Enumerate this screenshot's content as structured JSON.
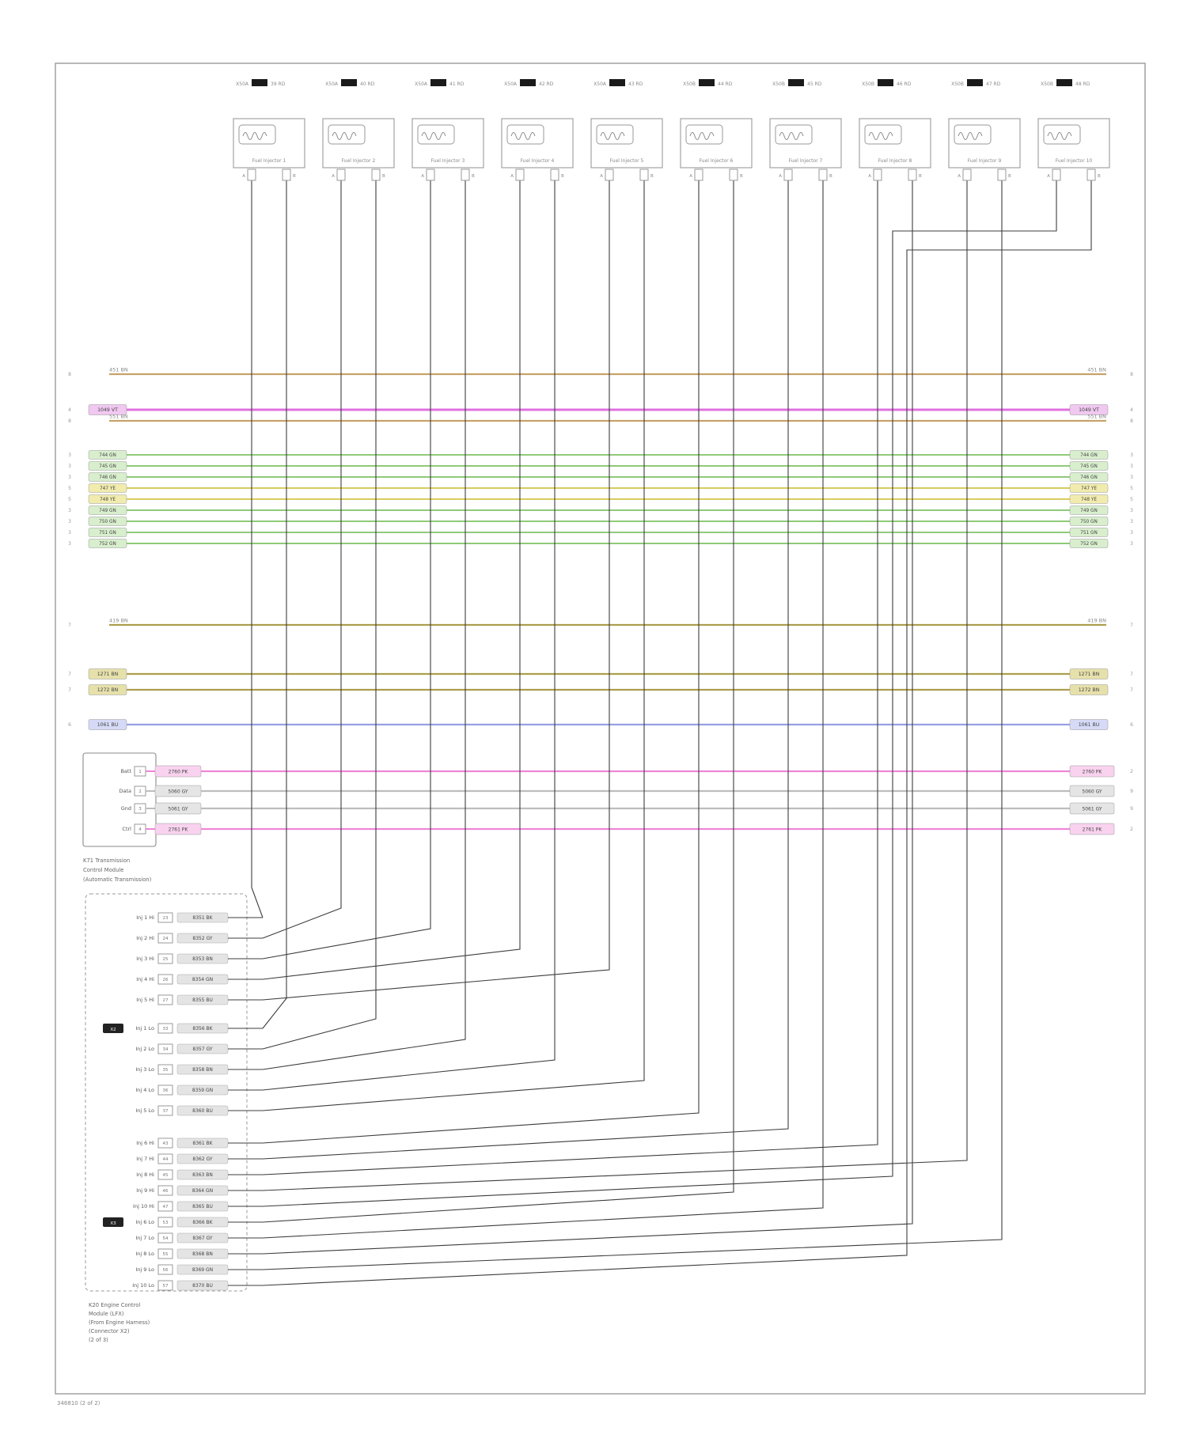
{
  "page": {
    "bg": "#ffffff",
    "frame_color": "#9a9a9a",
    "wire_color": "#3c3c3c"
  },
  "footer": {
    "doc_id": "346810 (2 of 2)"
  },
  "connectors": [
    {
      "name": "Fuel Injector 1",
      "hl": "X50A",
      "hr": "39 RD",
      "pl": "A",
      "pr": "B"
    },
    {
      "name": "Fuel Injector 2",
      "hl": "X50A",
      "hr": "40 RD",
      "pl": "A",
      "pr": "B"
    },
    {
      "name": "Fuel Injector 3",
      "hl": "X50A",
      "hr": "41 RD",
      "pl": "A",
      "pr": "B"
    },
    {
      "name": "Fuel Injector 4",
      "hl": "X50A",
      "hr": "42 RD",
      "pl": "A",
      "pr": "B"
    },
    {
      "name": "Fuel Injector 5",
      "hl": "X50A",
      "hr": "43 RD",
      "pl": "A",
      "pr": "B"
    },
    {
      "name": "Fuel Injector 6",
      "hl": "X50B",
      "hr": "44 RD",
      "pl": "A",
      "pr": "B"
    },
    {
      "name": "Fuel Injector 7",
      "hl": "X50B",
      "hr": "45 RD",
      "pl": "A",
      "pr": "B"
    },
    {
      "name": "Fuel Injector 8",
      "hl": "X50B",
      "hr": "46 RD",
      "pl": "A",
      "pr": "B"
    },
    {
      "name": "Fuel Injector 9",
      "hl": "X50B",
      "hr": "47 RD",
      "pl": "A",
      "pr": "B"
    },
    {
      "name": "Fuel Injector 10",
      "hl": "X50B",
      "hr": "48 RD",
      "pl": "A",
      "pr": "B"
    }
  ],
  "buses": [
    {
      "label": "451 BN",
      "num": "8",
      "color": "#c8a26a",
      "chip": "#e8d6b6"
    },
    {
      "label": "1049 VT",
      "num": "4",
      "color": "#e070e0",
      "chip": "#f0c8f0"
    },
    {
      "label": "551 BN",
      "num": "8",
      "color": "#c8a26a",
      "chip": "#e8d6b6"
    },
    {
      "label": "744 GN",
      "num": "3",
      "color": "#8fca79",
      "chip": "#d8eecd"
    },
    {
      "label": "745 GN",
      "num": "3",
      "color": "#8fca79",
      "chip": "#d8eecd"
    },
    {
      "label": "746 GN",
      "num": "3",
      "color": "#8fca79",
      "chip": "#d8eecd"
    },
    {
      "label": "747 YE",
      "num": "5",
      "color": "#d8cc5e",
      "chip": "#f1ecae"
    },
    {
      "label": "748 YE",
      "num": "5",
      "color": "#d8cc5e",
      "chip": "#f1ecae"
    },
    {
      "label": "749 GN",
      "num": "3",
      "color": "#8fca79",
      "chip": "#d8eecd"
    },
    {
      "label": "750 GN",
      "num": "3",
      "color": "#8fca79",
      "chip": "#d8eecd"
    },
    {
      "label": "751 GN",
      "num": "3",
      "color": "#8fca79",
      "chip": "#d8eecd"
    },
    {
      "label": "752 GN",
      "num": "3",
      "color": "#8fca79",
      "chip": "#d8eecd"
    },
    {
      "label": "419 BN",
      "num": "7",
      "color": "#ac9e4e",
      "chip": "#e6e0ab"
    },
    {
      "label": "1271 BN",
      "num": "7",
      "color": "#ac9e4e",
      "chip": "#e6e0ab"
    },
    {
      "label": "1272 BN",
      "num": "7",
      "color": "#ac9e4e",
      "chip": "#e6e0ab"
    },
    {
      "label": "1061 BU",
      "num": "6",
      "color": "#98a0e6",
      "chip": "#d6daf6"
    }
  ],
  "module": {
    "rows": [
      {
        "pin": "1",
        "label": "Batt",
        "chip": "2760 PK",
        "color": "#ee86d8",
        "chip_fill": "#f8d2ee",
        "num": "2"
      },
      {
        "pin": "2",
        "label": "Data",
        "chip": "5060 GY",
        "color": "#bdbdbd",
        "chip_fill": "#e5e5e5",
        "num": "9"
      },
      {
        "pin": "3",
        "label": "Gnd",
        "chip": "5061 GY",
        "color": "#bdbdbd",
        "chip_fill": "#e5e5e5",
        "num": "9"
      },
      {
        "pin": "4",
        "label": "Ctrl",
        "chip": "2761 PK",
        "color": "#ee86d8",
        "chip_fill": "#f8d2ee",
        "num": "2"
      }
    ],
    "caption": [
      "K71 Transmission",
      "Control Module",
      "(Automatic Transmission)"
    ]
  },
  "ecm": {
    "rows_a1": [
      {
        "label": "Inj 1 Hi",
        "pin": "23",
        "chip": "8351 BK"
      },
      {
        "label": "Inj 2 Hi",
        "pin": "24",
        "chip": "8352 GY"
      },
      {
        "label": "Inj 3 Hi",
        "pin": "25",
        "chip": "8353 BN"
      },
      {
        "label": "Inj 4 Hi",
        "pin": "26",
        "chip": "8354 GN"
      },
      {
        "label": "Inj 5 Hi",
        "pin": "27",
        "chip": "8355 BU"
      }
    ],
    "rows_a2": [
      {
        "label": "Inj 1 Lo",
        "pin": "33",
        "chip": "8356 BK"
      },
      {
        "label": "Inj 2 Lo",
        "pin": "34",
        "chip": "8357 GY"
      },
      {
        "label": "Inj 3 Lo",
        "pin": "35",
        "chip": "8358 BN"
      },
      {
        "label": "Inj 4 Lo",
        "pin": "36",
        "chip": "8359 GN"
      },
      {
        "label": "Inj 5 Lo",
        "pin": "37",
        "chip": "8360 BU"
      }
    ],
    "rows_b1": [
      {
        "label": "Inj 6 Hi",
        "pin": "43",
        "chip": "8361 BK"
      },
      {
        "label": "Inj 7 Hi",
        "pin": "44",
        "chip": "8362 GY"
      },
      {
        "label": "Inj 8 Hi",
        "pin": "45",
        "chip": "8363 BN"
      },
      {
        "label": "Inj 9 Hi",
        "pin": "46",
        "chip": "8364 GN"
      },
      {
        "label": "Inj 10 Hi",
        "pin": "47",
        "chip": "8365 BU"
      }
    ],
    "rows_b2": [
      {
        "label": "Inj 6 Lo",
        "pin": "53",
        "chip": "8366 BK"
      },
      {
        "label": "Inj 7 Lo",
        "pin": "54",
        "chip": "8367 GY"
      },
      {
        "label": "Inj 8 Lo",
        "pin": "55",
        "chip": "8368 BN"
      },
      {
        "label": "Inj 9 Lo",
        "pin": "56",
        "chip": "8369 GN"
      },
      {
        "label": "Inj 10 Lo",
        "pin": "57",
        "chip": "8370 BU"
      }
    ],
    "shell_a": "X2",
    "shell_b": "X3",
    "caption": [
      "K20 Engine Control",
      "Module (LFX)",
      "(From Engine Harness)",
      "(Connector X2)",
      "(2 of 3)"
    ]
  }
}
